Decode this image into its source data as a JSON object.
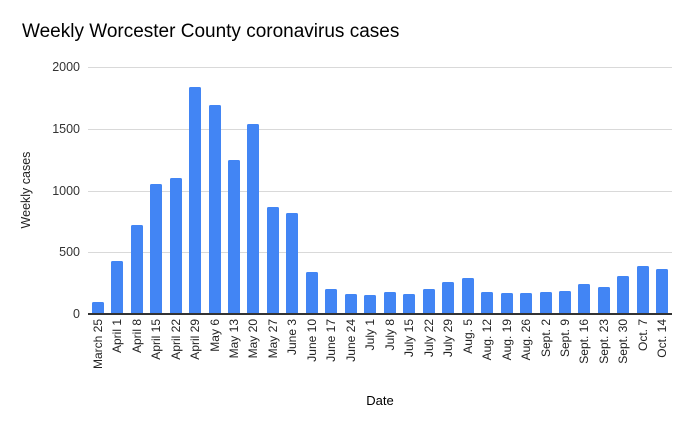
{
  "chart_data": {
    "type": "bar",
    "title": "Weekly Worcester County coronavirus cases",
    "xlabel": "Date",
    "ylabel": "Weekly cases",
    "categories": [
      "March 25",
      "April 1",
      "April 8",
      "April 15",
      "April 22",
      "April 29",
      "May 6",
      "May 13",
      "May 20",
      "May 27",
      "June 3",
      "June 10",
      "June 17",
      "June 24",
      "July 1",
      "July 8",
      "July 15",
      "July 22",
      "July 29",
      "Aug. 5",
      "Aug. 12",
      "Aug. 19",
      "Aug. 26",
      "Sept. 2",
      "Sept. 9",
      "Sept. 16",
      "Sept. 23",
      "Sept. 30",
      "Oct. 7",
      "Oct. 14"
    ],
    "values": [
      100,
      430,
      720,
      1050,
      1100,
      1840,
      1690,
      1250,
      1540,
      870,
      820,
      340,
      205,
      165,
      155,
      180,
      160,
      200,
      260,
      290,
      180,
      170,
      170,
      180,
      190,
      245,
      220,
      310,
      385,
      365
    ],
    "ylim": [
      0,
      2000
    ],
    "yticks": [
      0,
      500,
      1000,
      1500,
      2000
    ],
    "grid": "horizontal-only",
    "legend": "none",
    "bar_color": "#4285f4",
    "gridline_color": "#d9d9d9",
    "axis_line_color": "#333333",
    "tick_text_color": "#333333"
  }
}
